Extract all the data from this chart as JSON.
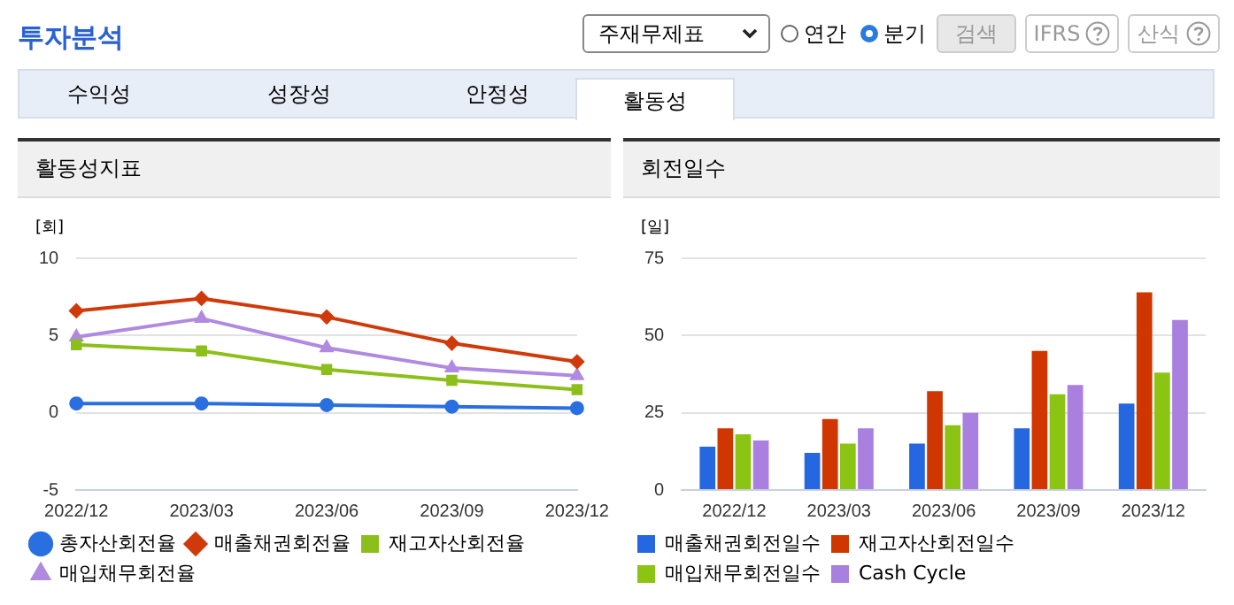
{
  "chart_data": [
    {
      "type": "other",
      "title": "투자분석",
      "annotations": [
        "주재무제표",
        "연간",
        "분기",
        "검색",
        "IFRS",
        "산식",
        "수익성",
        "성장성",
        "안정성",
        "활동성"
      ]
    },
    {
      "type": "line",
      "title": "활동성지표",
      "ylabel": "[회]",
      "categories": [
        "2022/12",
        "2023/03",
        "2023/06",
        "2023/09",
        "2023/12"
      ],
      "ylim": [
        -5,
        10
      ],
      "yticks": [
        -5,
        0,
        5,
        10
      ],
      "grid": "y",
      "legend": "bottom",
      "series": [
        {
          "name": "총자산회전율",
          "color": "#2a6fe0",
          "marker": "circle",
          "values": [
            0.6,
            0.6,
            0.5,
            0.4,
            0.3
          ]
        },
        {
          "name": "매출채권회전율",
          "color": "#d03a0a",
          "marker": "diamond",
          "values": [
            6.6,
            7.4,
            6.2,
            4.5,
            3.3
          ]
        },
        {
          "name": "재고자산회전율",
          "color": "#8cbf1a",
          "marker": "square",
          "values": [
            4.4,
            4.0,
            2.8,
            2.1,
            1.5
          ]
        },
        {
          "name": "매입채무회전율",
          "color": "#b08ae0",
          "marker": "triangle",
          "values": [
            4.9,
            6.1,
            4.2,
            2.9,
            2.4
          ]
        }
      ]
    },
    {
      "type": "bar",
      "title": "회전일수",
      "ylabel": "[일]",
      "categories": [
        "2022/12",
        "2023/03",
        "2023/06",
        "2023/09",
        "2023/12"
      ],
      "ylim": [
        0,
        75
      ],
      "yticks": [
        0,
        25,
        50,
        75
      ],
      "grid": "y",
      "legend": "bottom",
      "series": [
        {
          "name": "매출채권회전일수",
          "color": "#2467e0",
          "values": [
            14,
            12,
            15,
            20,
            28
          ]
        },
        {
          "name": "재고자산회전일수",
          "color": "#d03600",
          "values": [
            20,
            23,
            32,
            45,
            64
          ]
        },
        {
          "name": "매입채무회전일수",
          "color": "#8cc414",
          "values": [
            18,
            15,
            21,
            31,
            38
          ]
        },
        {
          "name": "Cash Cycle",
          "color": "#a97fe0",
          "values": [
            16,
            20,
            25,
            34,
            55
          ]
        }
      ]
    }
  ]
}
